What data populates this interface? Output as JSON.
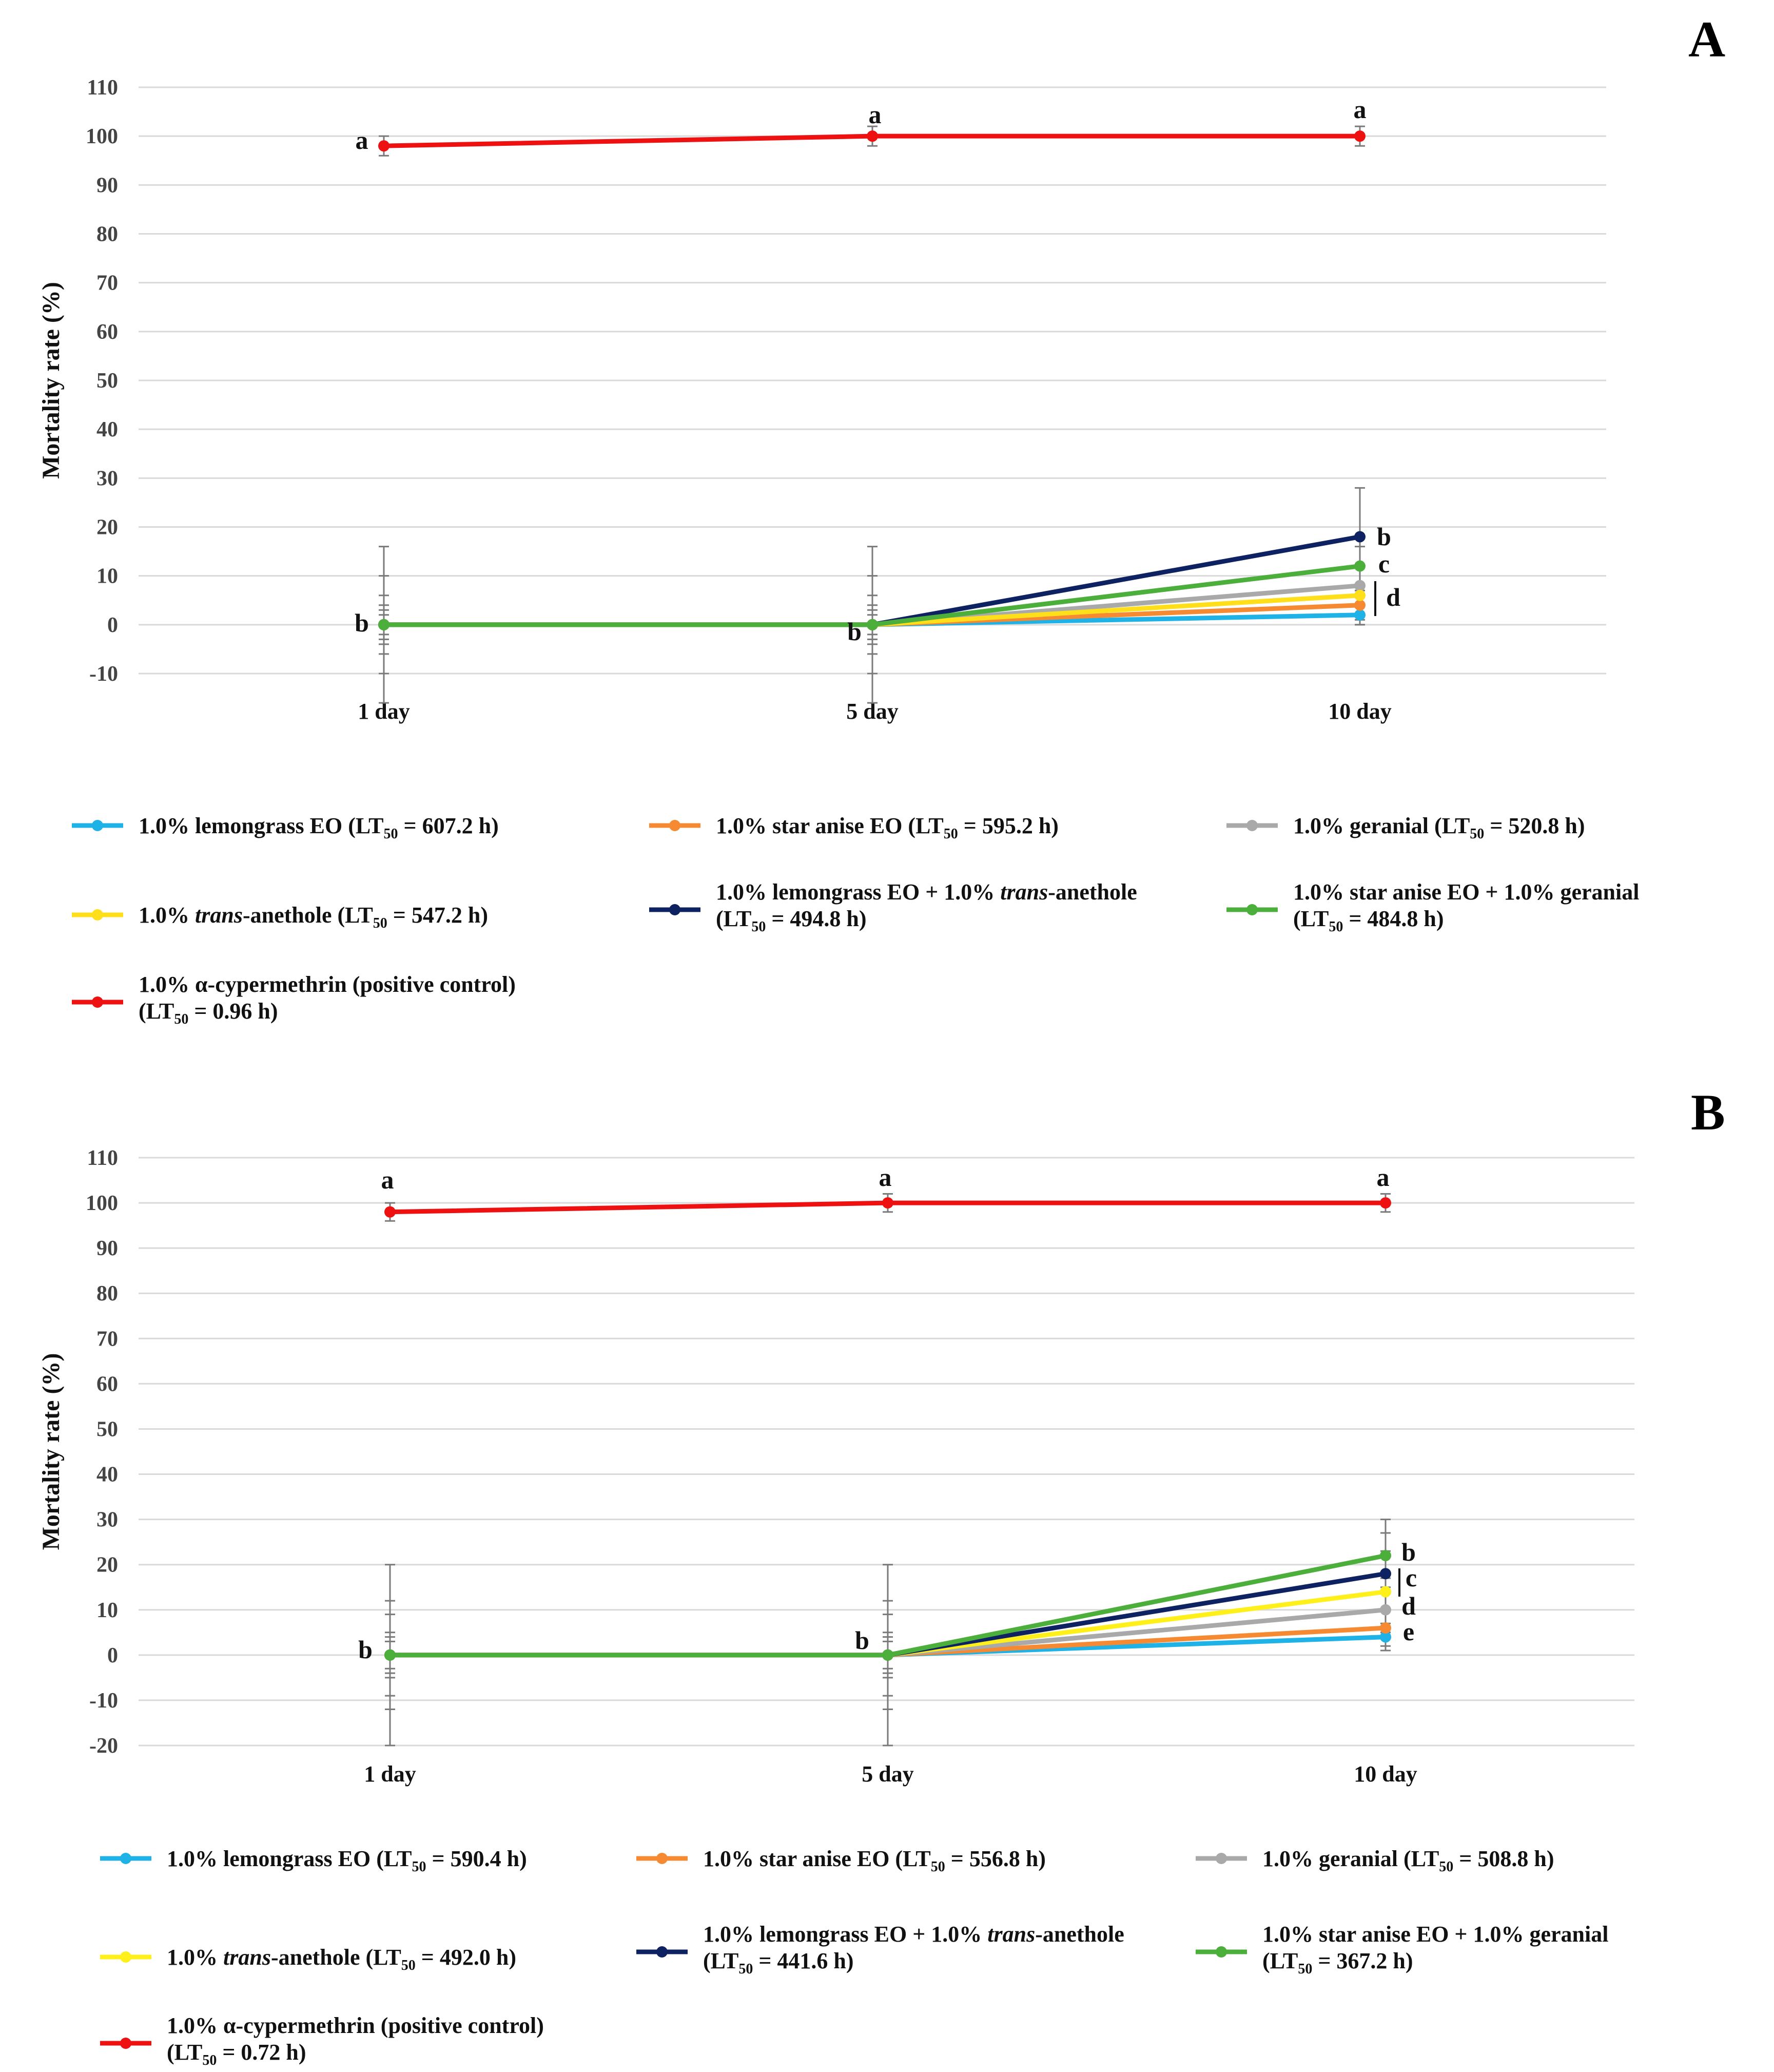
{
  "chart_data": [
    {
      "type": "line",
      "panel": "A",
      "ylabel": "Mortality rate (%)",
      "ylim": [
        -10,
        110
      ],
      "yticks": [
        "110",
        "100",
        "90",
        "80",
        "70",
        "60",
        "50",
        "40",
        "30",
        "20",
        "10",
        "0",
        "-10"
      ],
      "categories": [
        "1 day",
        "5 day",
        "10 day"
      ],
      "series": [
        {
          "name": "lemongrass",
          "color": "#1fb2e6",
          "values": [
            0,
            0,
            2
          ],
          "err": [
            2,
            2,
            2
          ],
          "legend_a": "1.0% lemongrass EO (LT",
          "legend_sub": "50",
          "legend_b": " = 607.2 h)"
        },
        {
          "name": "staranise",
          "color": "#f58a33",
          "values": [
            0,
            0,
            4
          ],
          "err": [
            3,
            3,
            3
          ],
          "legend_a": "1.0% star anise EO (LT",
          "legend_sub": "50",
          "legend_b": " = 595.2 h)"
        },
        {
          "name": "geranial",
          "color": "#a9a9a9",
          "values": [
            0,
            0,
            8
          ],
          "err": [
            4,
            4,
            4
          ],
          "legend_a": "1.0% geranial (LT",
          "legend_sub": "50",
          "legend_b": " = 520.8 h)"
        },
        {
          "name": "anethole",
          "color": "#ffdf1a",
          "values": [
            0,
            0,
            6
          ],
          "err": [
            6,
            6,
            6
          ],
          "legend_a": "1.0% ",
          "legend_it": "trans",
          "legend_c": "-anethole (LT",
          "legend_sub": "50",
          "legend_b": " = 547.2 h)"
        },
        {
          "name": "lemongrass_anethole",
          "color": "#0e2160",
          "values": [
            0,
            0,
            18
          ],
          "err": [
            10,
            10,
            10
          ],
          "legend_a": "1.0% lemongrass EO + 1.0% ",
          "legend_it": "trans",
          "legend_c": "-anethole",
          "legend_line2": "(LT",
          "legend_sub": "50",
          "legend_b": " = 494.8 h)"
        },
        {
          "name": "staranise_geranial",
          "color": "#4caf3c",
          "values": [
            0,
            0,
            12
          ],
          "err": [
            16,
            16,
            4
          ],
          "legend_a": "1.0% star anise EO + 1.0% geranial",
          "legend_line2": "(LT",
          "legend_sub": "50",
          "legend_b": " = 484.8 h)"
        },
        {
          "name": "cypermethrin",
          "color": "#ee1111",
          "values": [
            98,
            100,
            100
          ],
          "err": [
            2,
            2,
            2
          ],
          "legend_a": "1.0% α-cypermethrin (positive control)",
          "legend_line2": "(LT",
          "legend_sub": "50",
          "legend_b": " = 0.96 h)"
        }
      ],
      "annotations": [
        "a",
        "a",
        "a",
        "b",
        "b",
        "b",
        "c",
        "d"
      ]
    },
    {
      "type": "line",
      "panel": "B",
      "ylabel": "Mortality rate (%)",
      "ylim": [
        -20,
        110
      ],
      "yticks": [
        "110",
        "100",
        "90",
        "80",
        "70",
        "60",
        "50",
        "40",
        "30",
        "20",
        "10",
        "0",
        "-10",
        "-20"
      ],
      "categories": [
        "1 day",
        "5 day",
        "10 day"
      ],
      "series": [
        {
          "name": "lemongrass",
          "color": "#1fb2e6",
          "values": [
            0,
            0,
            4
          ],
          "err": [
            3,
            3,
            3
          ],
          "legend_a": "1.0% lemongrass EO (LT",
          "legend_sub": "50",
          "legend_b": " = 590.4 h)"
        },
        {
          "name": "staranise",
          "color": "#f58a33",
          "values": [
            0,
            0,
            6
          ],
          "err": [
            4,
            4,
            4
          ],
          "legend_a": "1.0% star anise EO (LT",
          "legend_sub": "50",
          "legend_b": " = 556.8 h)"
        },
        {
          "name": "geranial",
          "color": "#a9a9a9",
          "values": [
            0,
            0,
            10
          ],
          "err": [
            5,
            5,
            5
          ],
          "legend_a": "1.0% geranial (LT",
          "legend_sub": "50",
          "legend_b": " = 508.8 h)"
        },
        {
          "name": "anethole",
          "color": "#ffef1a",
          "values": [
            0,
            0,
            14
          ],
          "err": [
            9,
            9,
            9
          ],
          "legend_a": "1.0% ",
          "legend_it": "trans",
          "legend_c": "-anethole (LT",
          "legend_sub": "50",
          "legend_b": " = 492.0 h)"
        },
        {
          "name": "lemongrass_anethole",
          "color": "#0e2160",
          "values": [
            0,
            0,
            18
          ],
          "err": [
            12,
            12,
            12
          ],
          "legend_a": "1.0% lemongrass EO + 1.0% ",
          "legend_it": "trans",
          "legend_c": "-anethole",
          "legend_line2": "(LT",
          "legend_sub": "50",
          "legend_b": " = 441.6 h)"
        },
        {
          "name": "staranise_geranial",
          "color": "#4caf3c",
          "values": [
            0,
            0,
            22
          ],
          "err": [
            20,
            20,
            5
          ],
          "legend_a": "1.0% star anise EO + 1.0% geranial",
          "legend_line2": "(LT",
          "legend_sub": "50",
          "legend_b": " = 367.2 h)"
        },
        {
          "name": "cypermethrin",
          "color": "#ee1111",
          "values": [
            98,
            100,
            100
          ],
          "err": [
            2,
            2,
            2
          ],
          "legend_a": "1.0% α-cypermethrin (positive control)",
          "legend_line2": "(LT",
          "legend_sub": "50",
          "legend_b": " = 0.72 h)"
        }
      ],
      "annotations": [
        "a",
        "a",
        "a",
        "b",
        "b",
        "b",
        "c",
        "d",
        "e"
      ]
    }
  ]
}
